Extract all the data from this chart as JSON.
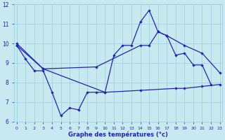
{
  "xlabel": "Graphe des températures (°c)",
  "bg_color": "#c6eaf0",
  "grid_color": "#a0c8d8",
  "line_color": "#2222bb",
  "ylim": [
    6,
    12
  ],
  "xlim": [
    0,
    23
  ],
  "curve1_x": [
    0,
    1,
    2,
    3,
    4,
    5,
    6,
    7,
    8,
    9,
    10,
    11,
    12,
    13,
    14,
    15,
    16,
    17,
    18,
    19,
    20,
    21,
    22
  ],
  "curve1_y": [
    9.9,
    9.2,
    8.6,
    8.6,
    7.5,
    6.3,
    6.7,
    6.6,
    7.5,
    7.5,
    7.5,
    9.4,
    9.9,
    9.9,
    11.1,
    11.7,
    10.6,
    10.4,
    9.4,
    9.5,
    8.9,
    8.9,
    7.9
  ],
  "curve2_x": [
    0,
    3,
    9,
    14,
    15,
    16,
    17,
    19,
    21,
    23
  ],
  "curve2_y": [
    10.0,
    8.7,
    8.8,
    9.9,
    9.9,
    10.6,
    10.4,
    9.9,
    9.5,
    8.5
  ],
  "curve3_x": [
    0,
    3,
    10,
    14,
    18,
    19,
    21,
    23
  ],
  "curve3_y": [
    9.9,
    8.7,
    7.5,
    7.6,
    7.7,
    7.7,
    7.8,
    7.9
  ]
}
